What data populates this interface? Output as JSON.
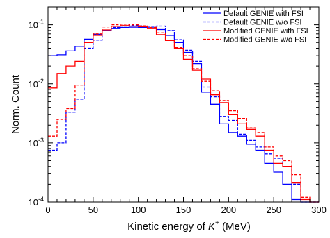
{
  "chart_data": {
    "type": "line",
    "xlabel": "Kinetic energy of K⁺ (MeV)",
    "xlabel_main": "Kinetic energy of ",
    "xlabel_symbol": "K",
    "xlabel_sup": "+",
    "xlabel_unit": " (MeV)",
    "ylabel": "Norm. Count",
    "xlim": [
      0,
      300
    ],
    "ylim": [
      0.0001,
      0.2
    ],
    "yscale": "log",
    "grid": false,
    "legend_position": "top-right",
    "x_ticks": [
      "0",
      "50",
      "100",
      "150",
      "200",
      "250",
      "300"
    ],
    "y_ticks": [
      {
        "base": "10",
        "exp": "-4",
        "value": 0.0001
      },
      {
        "base": "10",
        "exp": "-3",
        "value": 0.001
      },
      {
        "base": "10",
        "exp": "-2",
        "value": 0.01
      },
      {
        "base": "10",
        "exp": "-1",
        "value": 0.1
      }
    ],
    "bin_edges": [
      0,
      10,
      20,
      30,
      40,
      50,
      60,
      70,
      80,
      90,
      100,
      110,
      120,
      130,
      140,
      150,
      160,
      170,
      180,
      190,
      200,
      210,
      220,
      230,
      240,
      250,
      260,
      270,
      280,
      290,
      300
    ],
    "series": [
      {
        "name": "Default GENIE with FSI",
        "color": "#0000ff",
        "dash": "solid",
        "values": [
          0.03,
          0.031,
          0.036,
          0.043,
          0.057,
          0.069,
          0.08,
          0.086,
          0.09,
          0.091,
          0.09,
          0.089,
          0.083,
          0.066,
          0.05,
          0.034,
          0.022,
          0.0072,
          0.0045,
          0.0021,
          0.0015,
          0.0013,
          0.00095,
          0.00075,
          0.00045,
          0.00032,
          0.0002,
          0.00011,
          9e-05,
          9e-05
        ]
      },
      {
        "name": "Default GENIE w/o  FSI",
        "color": "#0000ff",
        "dash": "dashed",
        "values": [
          0.00075,
          0.001,
          0.0033,
          0.0055,
          0.04,
          0.055,
          0.08,
          0.09,
          0.095,
          0.098,
          0.096,
          0.094,
          0.095,
          0.08,
          0.056,
          0.037,
          0.024,
          0.0088,
          0.006,
          0.0028,
          0.0024,
          0.0014,
          0.0011,
          0.00085,
          0.00065,
          0.00055,
          0.0004,
          0.0002,
          9e-05,
          9e-05
        ]
      },
      {
        "name": "Modified GENIE with FSI",
        "color": "#ff0000",
        "dash": "solid",
        "values": [
          0.0085,
          0.015,
          0.02,
          0.024,
          0.05,
          0.066,
          0.082,
          0.094,
          0.097,
          0.095,
          0.093,
          0.086,
          0.068,
          0.054,
          0.04,
          0.026,
          0.017,
          0.012,
          0.0065,
          0.0048,
          0.003,
          0.0021,
          0.0017,
          0.0013,
          0.00075,
          0.00045,
          0.0004,
          0.00021,
          0.00011,
          9e-05
        ]
      },
      {
        "name": "Modified GENIE w/o  FSI",
        "color": "#ff0000",
        "dash": "dashed",
        "values": [
          0.0013,
          0.0025,
          0.0038,
          0.0095,
          0.05,
          0.07,
          0.088,
          0.1,
          0.102,
          0.1,
          0.096,
          0.09,
          0.073,
          0.055,
          0.041,
          0.03,
          0.018,
          0.011,
          0.0078,
          0.0052,
          0.0035,
          0.0026,
          0.0018,
          0.0015,
          0.00085,
          0.0006,
          0.0005,
          0.00029,
          0.00012,
          9e-05
        ]
      }
    ]
  }
}
